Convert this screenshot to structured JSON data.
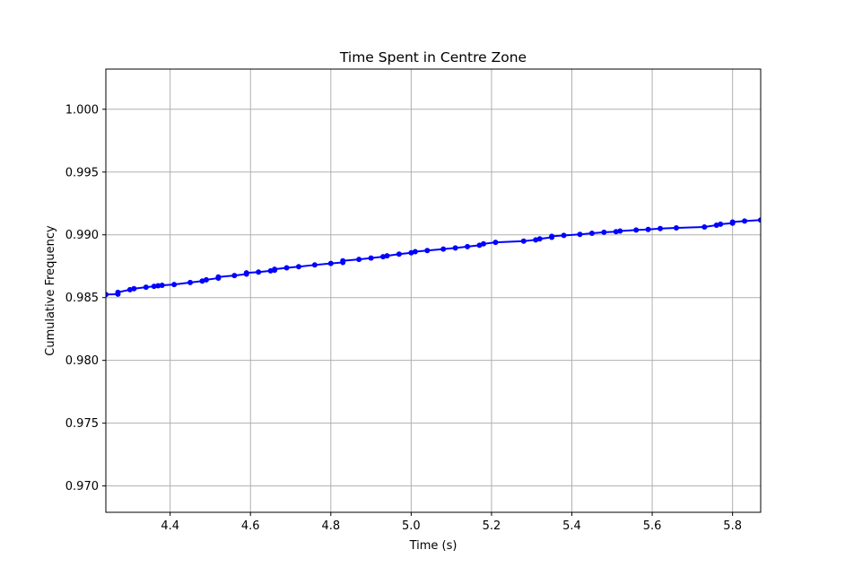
{
  "chart_data": {
    "type": "line",
    "title": "Time Spent in Centre Zone",
    "xlabel": "Time (s)",
    "ylabel": "Cumulative Frequency",
    "xlim": [
      4.24,
      5.87
    ],
    "ylim": [
      0.9679,
      1.0032
    ],
    "x_ticks": [
      4.4,
      4.6,
      4.8,
      5.0,
      5.2,
      5.4,
      5.6,
      5.8
    ],
    "x_tick_labels": [
      "4.4",
      "4.6",
      "4.8",
      "5.0",
      "5.2",
      "5.4",
      "5.6",
      "5.8"
    ],
    "y_ticks": [
      0.97,
      0.975,
      0.98,
      0.985,
      0.99,
      0.995,
      1.0
    ],
    "y_tick_labels": [
      "0.970",
      "0.975",
      "0.980",
      "0.985",
      "0.990",
      "0.995",
      "1.000"
    ],
    "grid": true,
    "series": [
      {
        "color": "#0000ff",
        "marker": "circle",
        "x": [
          4.24,
          4.27,
          4.27,
          4.3,
          4.31,
          4.34,
          4.36,
          4.37,
          4.38,
          4.41,
          4.45,
          4.48,
          4.49,
          4.52,
          4.52,
          4.56,
          4.59,
          4.59,
          4.62,
          4.65,
          4.66,
          4.66,
          4.69,
          4.72,
          4.76,
          4.8,
          4.83,
          4.83,
          4.87,
          4.9,
          4.93,
          4.94,
          4.97,
          5.0,
          5.01,
          5.04,
          5.08,
          5.11,
          5.14,
          5.17,
          5.18,
          5.21,
          5.28,
          5.31,
          5.32,
          5.35,
          5.35,
          5.38,
          5.42,
          5.45,
          5.48,
          5.51,
          5.52,
          5.56,
          5.59,
          5.62,
          5.66,
          5.73,
          5.76,
          5.77,
          5.8,
          5.8,
          5.83,
          5.87
        ],
        "y": [
          0.98525,
          0.98527,
          0.98542,
          0.98563,
          0.98571,
          0.98583,
          0.9859,
          0.98594,
          0.98598,
          0.98604,
          0.9862,
          0.98632,
          0.98642,
          0.98655,
          0.98664,
          0.98676,
          0.98687,
          0.98697,
          0.98703,
          0.98713,
          0.98718,
          0.98726,
          0.98737,
          0.98746,
          0.9876,
          0.98772,
          0.9878,
          0.98793,
          0.98804,
          0.98815,
          0.98826,
          0.98833,
          0.98846,
          0.98857,
          0.98866,
          0.98875,
          0.98886,
          0.98895,
          0.98906,
          0.98917,
          0.98928,
          0.9894,
          0.9895,
          0.9896,
          0.98968,
          0.9898,
          0.98988,
          0.98995,
          0.99003,
          0.99012,
          0.9902,
          0.99025,
          0.9903,
          0.99038,
          0.99043,
          0.9905,
          0.99055,
          0.99062,
          0.99077,
          0.99085,
          0.99093,
          0.99102,
          0.9911,
          0.99118
        ]
      }
    ]
  }
}
